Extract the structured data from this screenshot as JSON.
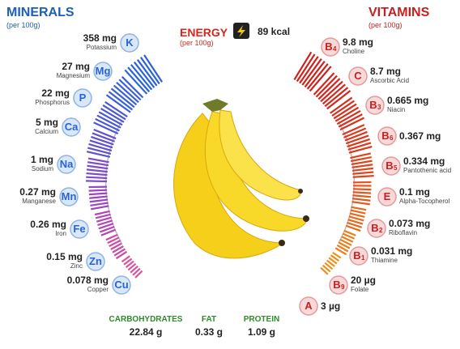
{
  "minerals": {
    "title": "MINERALS",
    "subtitle": "(per 100g)",
    "items": [
      {
        "amount": "358 mg",
        "name": "Potassium",
        "symbol": "K"
      },
      {
        "amount": "27 mg",
        "name": "Magnesium",
        "symbol": "Mg"
      },
      {
        "amount": "22 mg",
        "name": "Phosphorus",
        "symbol": "P"
      },
      {
        "amount": "5 mg",
        "name": "Calcium",
        "symbol": "Ca"
      },
      {
        "amount": "1 mg",
        "name": "Sodium",
        "symbol": "Na"
      },
      {
        "amount": "0.27 mg",
        "name": "Manganese",
        "symbol": "Mn"
      },
      {
        "amount": "0.26 mg",
        "name": "Iron",
        "symbol": "Fe"
      },
      {
        "amount": "0.15 mg",
        "name": "Zinc",
        "symbol": "Zn"
      },
      {
        "amount": "0.078 mg",
        "name": "Copper",
        "symbol": "Cu"
      }
    ]
  },
  "energy": {
    "title": "ENERGY",
    "subtitle": "(per 100g)",
    "value": "89 kcal"
  },
  "vitamins": {
    "title": "VITAMINS",
    "subtitle": "(per 100g)",
    "items": [
      {
        "amount": "9.8 mg",
        "name": "Choline",
        "symbol": "B",
        "subscript": "4"
      },
      {
        "amount": "8.7 mg",
        "name": "Ascorbic Acid",
        "symbol": "C"
      },
      {
        "amount": "0.665 mg",
        "name": "Niacin",
        "symbol": "B",
        "subscript": "3"
      },
      {
        "amount": "0.367 mg",
        "symbol": "B",
        "subscript": "6"
      },
      {
        "amount": "0.334 mg",
        "name": "Pantothenic acid",
        "symbol": "B",
        "subscript": "5"
      },
      {
        "amount": "0.1 mg",
        "name": "Alpha-Tocopherol",
        "symbol": "E"
      },
      {
        "amount": "0.073 mg",
        "name": "Riboflavin",
        "symbol": "B",
        "subscript": "2"
      },
      {
        "amount": "0.031 mg",
        "name": "Thiamine",
        "symbol": "B",
        "subscript": "1"
      },
      {
        "amount": "20 µg",
        "name": "Folate",
        "symbol": "B",
        "subscript": "9"
      },
      {
        "amount": "3 µg",
        "symbol": "A"
      }
    ]
  },
  "macros": [
    {
      "name": "CARBOHYDRATES",
      "amount": "22.84 g"
    },
    {
      "name": "FAT",
      "amount": "0.33 g"
    },
    {
      "name": "PROTEIN",
      "amount": "1.09 g"
    }
  ]
}
